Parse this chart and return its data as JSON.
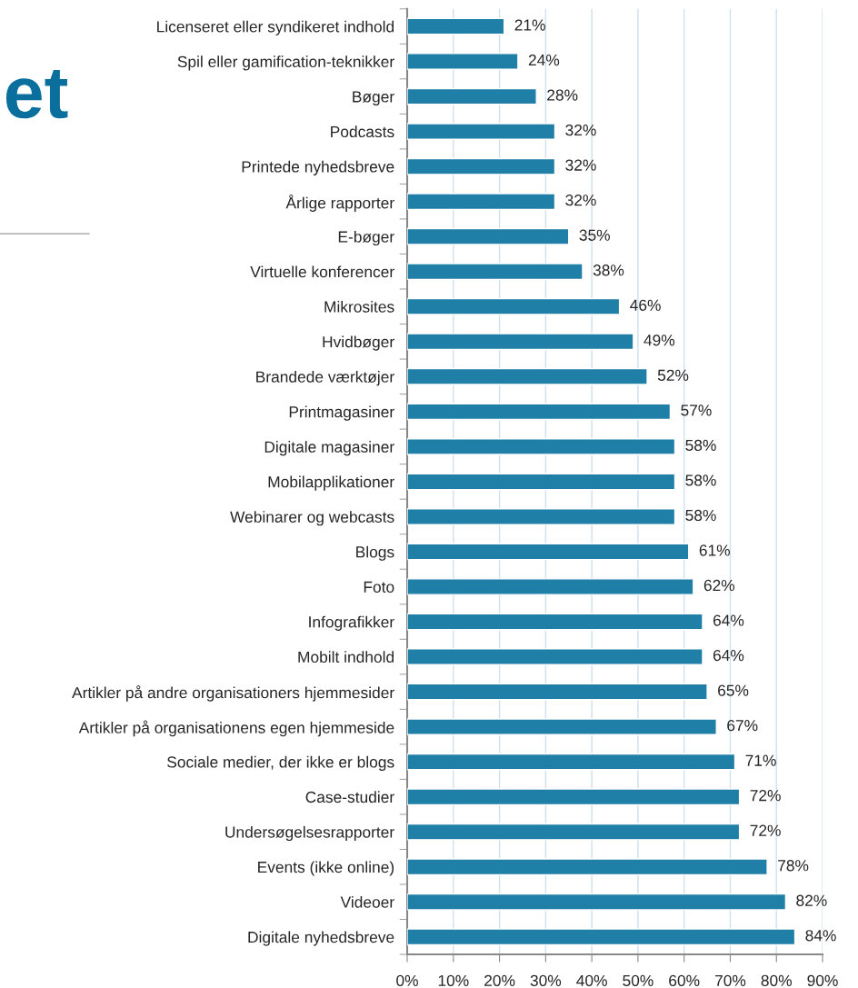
{
  "chart_data": {
    "type": "bar",
    "orientation": "horizontal",
    "categories": [
      "Licenseret eller syndikeret indhold",
      "Spil eller gamification-teknikker",
      "Bøger",
      "Podcasts",
      "Printede nyhedsbreve",
      "Årlige rapporter",
      "E-bøger",
      "Virtuelle konferencer",
      "Mikrosites",
      "Hvidbøger",
      "Brandede værktøjer",
      "Printmagasiner",
      "Digitale magasiner",
      "Mobilapplikationer",
      "Webinarer og webcasts",
      "Blogs",
      "Foto",
      "Infografikker",
      "Mobilt indhold",
      "Artikler på andre organisationers hjemmesider",
      "Artikler på organisationens egen hjemmeside",
      "Sociale medier, der ikke er blogs",
      "Case-studier",
      "Undersøgelsesrapporter",
      "Events (ikke online)",
      "Videoer",
      "Digitale nyhedsbreve"
    ],
    "values": [
      21,
      24,
      28,
      32,
      32,
      32,
      35,
      38,
      46,
      49,
      52,
      57,
      58,
      58,
      58,
      61,
      62,
      64,
      64,
      65,
      67,
      71,
      72,
      72,
      78,
      82,
      84
    ],
    "value_labels": [
      "21%",
      "24%",
      "28%",
      "32%",
      "32%",
      "32%",
      "35%",
      "38%",
      "46%",
      "49%",
      "52%",
      "57%",
      "58%",
      "58%",
      "58%",
      "61%",
      "62%",
      "64%",
      "64%",
      "65%",
      "67%",
      "71%",
      "72%",
      "72%",
      "78%",
      "82%",
      "84%"
    ],
    "color": "#1f7fa6",
    "xlim": [
      0,
      90
    ],
    "xticks": [
      {
        "value": 0,
        "label": "0%"
      },
      {
        "value": 10,
        "label": "10%"
      },
      {
        "value": 20,
        "label": "20%"
      },
      {
        "value": 30,
        "label": "30%"
      },
      {
        "value": 40,
        "label": "40%"
      },
      {
        "value": 50,
        "label": "50%"
      },
      {
        "value": 60,
        "label": "60%"
      },
      {
        "value": 70,
        "label": "70%"
      },
      {
        "value": 80,
        "label": "80%"
      },
      {
        "value": 90,
        "label": "90%"
      }
    ],
    "grid": "x",
    "legend": false,
    "annotations": [
      "et"
    ]
  }
}
